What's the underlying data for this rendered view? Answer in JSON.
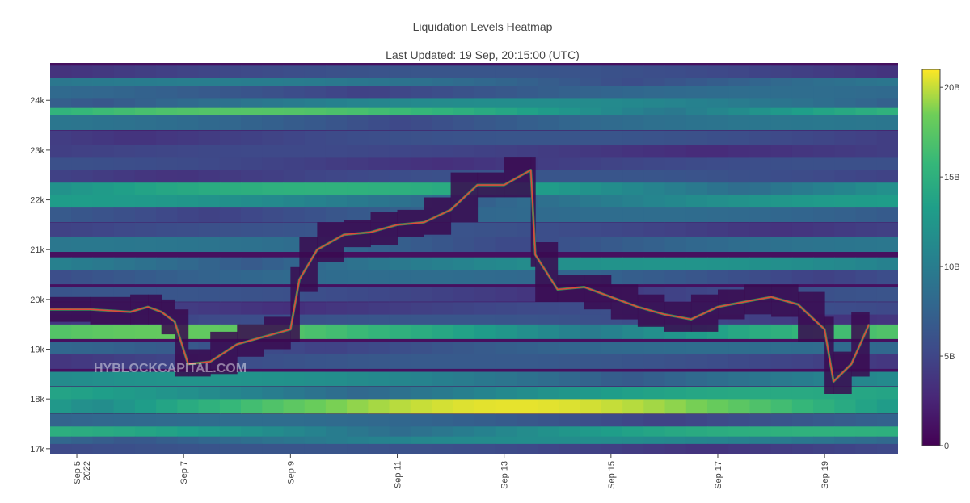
{
  "chart_data": {
    "type": "heatmap",
    "title": "Liquidation Levels Heatmap",
    "subtitle": "Last Updated: 19 Sep, 20:15:00 (UTC)",
    "watermark": "HYBLOCKCAPITAL.COM",
    "x_range": [
      "2022-09-04 12:00",
      "2022-09-20 09:00"
    ],
    "y_range": [
      16900,
      24750
    ],
    "x_ticks": [
      {
        "date": "2022-09-05",
        "label": "Sep 5",
        "sub": "2022"
      },
      {
        "date": "2022-09-07",
        "label": "Sep 7"
      },
      {
        "date": "2022-09-09",
        "label": "Sep 9"
      },
      {
        "date": "2022-09-11",
        "label": "Sep 11"
      },
      {
        "date": "2022-09-13",
        "label": "Sep 13"
      },
      {
        "date": "2022-09-15",
        "label": "Sep 15"
      },
      {
        "date": "2022-09-17",
        "label": "Sep 17"
      },
      {
        "date": "2022-09-19",
        "label": "Sep 19"
      }
    ],
    "y_ticks": [
      {
        "value": 17000,
        "label": "17k"
      },
      {
        "value": 18000,
        "label": "18k"
      },
      {
        "value": 19000,
        "label": "19k"
      },
      {
        "value": 20000,
        "label": "20k"
      },
      {
        "value": 21000,
        "label": "21k"
      },
      {
        "value": 22000,
        "label": "22k"
      },
      {
        "value": 23000,
        "label": "23k"
      },
      {
        "value": 24000,
        "label": "24k"
      }
    ],
    "colorscale": "viridis",
    "colorbar": {
      "range": [
        0,
        21000000000
      ],
      "ticks": [
        {
          "value": 0,
          "label": "0"
        },
        {
          "value": 5000000000,
          "label": "5B"
        },
        {
          "value": 10000000000,
          "label": "10B"
        },
        {
          "value": 15000000000,
          "label": "15B"
        },
        {
          "value": 20000000000,
          "label": "20B"
        }
      ]
    },
    "liquidation_bands": [
      {
        "price": 24550,
        "level": 0.3
      },
      {
        "price": 24300,
        "level": 0.48
      },
      {
        "price": 24150,
        "level": 0.4
      },
      {
        "price": 23900,
        "level": 0.55
      },
      {
        "price": 23700,
        "level": 0.82
      },
      {
        "price": 23550,
        "level": 0.45
      },
      {
        "price": 23250,
        "level": 0.3
      },
      {
        "price": 22950,
        "level": 0.25
      },
      {
        "price": 22700,
        "level": 0.28
      },
      {
        "price": 22450,
        "level": 0.3
      },
      {
        "price": 22200,
        "level": 0.72
      },
      {
        "price": 21950,
        "level": 0.62
      },
      {
        "price": 21700,
        "level": 0.4
      },
      {
        "price": 21400,
        "level": 0.3
      },
      {
        "price": 21100,
        "level": 0.45
      },
      {
        "price": 20700,
        "level": 0.58
      },
      {
        "price": 20450,
        "level": 0.4
      },
      {
        "price": 20100,
        "level": 0.3
      },
      {
        "price": 19800,
        "level": 0.28
      },
      {
        "price": 19550,
        "level": 0.3
      },
      {
        "price": 19350,
        "level": 0.85
      },
      {
        "price": 19000,
        "level": 0.4
      },
      {
        "price": 18750,
        "level": 0.32
      },
      {
        "price": 18400,
        "level": 0.58
      },
      {
        "price": 18100,
        "level": 0.68
      },
      {
        "price": 17850,
        "level": 0.98
      },
      {
        "price": 17550,
        "level": 0.4
      },
      {
        "price": 17300,
        "level": 0.72
      },
      {
        "price": 17100,
        "level": 0.55
      },
      {
        "price": 16950,
        "level": 0.3
      }
    ],
    "price_series": [
      {
        "t": "2022-09-04 12:00",
        "p": 19800
      },
      {
        "t": "2022-09-05 06:00",
        "p": 19800
      },
      {
        "t": "2022-09-06 00:00",
        "p": 19750
      },
      {
        "t": "2022-09-06 08:00",
        "p": 19850
      },
      {
        "t": "2022-09-06 14:00",
        "p": 19750
      },
      {
        "t": "2022-09-06 20:00",
        "p": 19550
      },
      {
        "t": "2022-09-07 02:00",
        "p": 18700
      },
      {
        "t": "2022-09-07 12:00",
        "p": 18750
      },
      {
        "t": "2022-09-08 00:00",
        "p": 19100
      },
      {
        "t": "2022-09-08 12:00",
        "p": 19250
      },
      {
        "t": "2022-09-09 00:00",
        "p": 19400
      },
      {
        "t": "2022-09-09 04:00",
        "p": 20400
      },
      {
        "t": "2022-09-09 12:00",
        "p": 21000
      },
      {
        "t": "2022-09-10 00:00",
        "p": 21300
      },
      {
        "t": "2022-09-10 12:00",
        "p": 21350
      },
      {
        "t": "2022-09-11 00:00",
        "p": 21500
      },
      {
        "t": "2022-09-11 12:00",
        "p": 21550
      },
      {
        "t": "2022-09-12 00:00",
        "p": 21800
      },
      {
        "t": "2022-09-12 12:00",
        "p": 22300
      },
      {
        "t": "2022-09-13 00:00",
        "p": 22300
      },
      {
        "t": "2022-09-13 12:00",
        "p": 22600
      },
      {
        "t": "2022-09-13 14:00",
        "p": 20900
      },
      {
        "t": "2022-09-14 00:00",
        "p": 20200
      },
      {
        "t": "2022-09-14 12:00",
        "p": 20250
      },
      {
        "t": "2022-09-15 00:00",
        "p": 20050
      },
      {
        "t": "2022-09-15 12:00",
        "p": 19850
      },
      {
        "t": "2022-09-16 00:00",
        "p": 19700
      },
      {
        "t": "2022-09-16 12:00",
        "p": 19600
      },
      {
        "t": "2022-09-17 00:00",
        "p": 19850
      },
      {
        "t": "2022-09-17 12:00",
        "p": 19950
      },
      {
        "t": "2022-09-18 00:00",
        "p": 20050
      },
      {
        "t": "2022-09-18 12:00",
        "p": 19900
      },
      {
        "t": "2022-09-19 00:00",
        "p": 19400
      },
      {
        "t": "2022-09-19 04:00",
        "p": 18350
      },
      {
        "t": "2022-09-19 12:00",
        "p": 18700
      },
      {
        "t": "2022-09-19 20:00",
        "p": 19500
      }
    ]
  }
}
